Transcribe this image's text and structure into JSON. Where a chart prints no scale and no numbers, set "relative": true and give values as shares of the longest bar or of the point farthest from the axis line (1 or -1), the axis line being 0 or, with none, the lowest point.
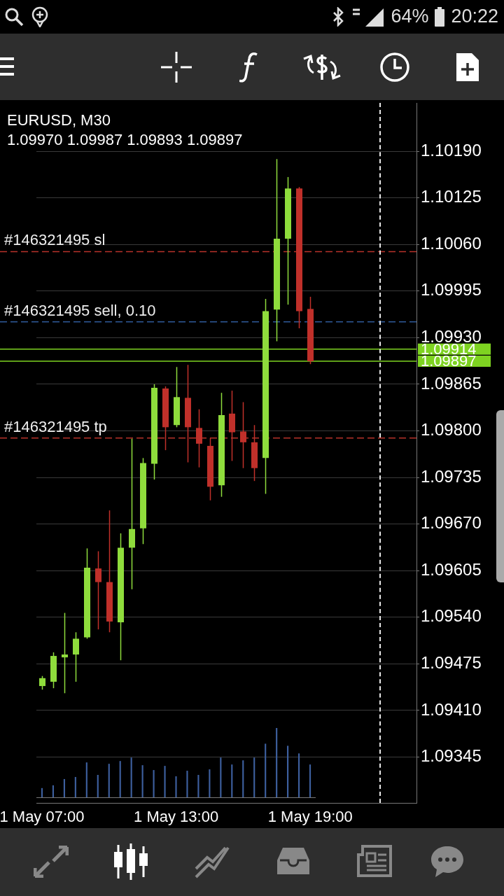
{
  "chart_data": [
    {
      "type": "candlestick",
      "title": "EURUSD, M30",
      "subtitle": "1.09970 1.09987 1.09893 1.09897",
      "categories": [
        "1 May 07:00",
        null,
        null,
        null,
        null,
        null,
        null,
        null,
        null,
        null,
        null,
        null,
        "1 May 13:00",
        null,
        null,
        null,
        null,
        null,
        null,
        null,
        null,
        null,
        null,
        null,
        "1 May 19:00",
        null,
        null,
        null,
        null,
        null,
        null,
        null,
        null,
        null
      ],
      "ohlc": [
        [
          1.09444,
          1.09458,
          1.09439,
          1.09455
        ],
        [
          1.0945,
          1.09491,
          1.09441,
          1.09486
        ],
        [
          1.09484,
          1.09546,
          1.09434,
          1.09488
        ],
        [
          1.09488,
          1.09519,
          1.0945,
          1.0951
        ],
        [
          1.09512,
          1.09636,
          1.0951,
          1.09609
        ],
        [
          1.09608,
          1.09632,
          1.09523,
          1.09589
        ],
        [
          1.09589,
          1.09689,
          1.09519,
          1.09534
        ],
        [
          1.09533,
          1.09657,
          1.0948,
          1.09637
        ],
        [
          1.09637,
          1.09789,
          1.09579,
          1.09663
        ],
        [
          1.09664,
          1.09762,
          1.09642,
          1.09755
        ],
        [
          1.09754,
          1.09865,
          1.09732,
          1.0986
        ],
        [
          1.09859,
          1.09862,
          1.09773,
          1.09805
        ],
        [
          1.09808,
          1.09889,
          1.09805,
          1.09847
        ],
        [
          1.09846,
          1.09892,
          1.09756,
          1.09805
        ],
        [
          1.09804,
          1.0983,
          1.09749,
          1.09782
        ],
        [
          1.09779,
          1.0979,
          1.09703,
          1.09722
        ],
        [
          1.09724,
          1.09853,
          1.09708,
          1.09822
        ],
        [
          1.09824,
          1.09856,
          1.09758,
          1.09798
        ],
        [
          1.09799,
          1.0984,
          1.09748,
          1.09784
        ],
        [
          1.09784,
          1.09808,
          1.0973,
          1.09748
        ],
        [
          1.09762,
          1.09984,
          1.09712,
          1.09967
        ],
        [
          1.09969,
          1.10179,
          1.09925,
          1.10068
        ],
        [
          1.10068,
          1.10154,
          1.09976,
          1.10138
        ],
        [
          1.10138,
          1.1014,
          1.09943,
          1.09967
        ],
        [
          1.0997,
          1.09987,
          1.09893,
          1.09897
        ],
        null,
        null,
        null,
        null,
        null,
        null,
        null,
        null,
        null
      ],
      "colors": [
        "#8fdc3c",
        "#8fdc3c",
        "#8fdc3c",
        "#8fdc3c",
        "#8fdc3c",
        "#c0302a",
        "#c0302a",
        "#8fdc3c",
        "#8fdc3c",
        "#8fdc3c",
        "#8fdc3c",
        "#c0302a",
        "#8fdc3c",
        "#c0302a",
        "#c0302a",
        "#c0302a",
        "#8fdc3c",
        "#c0302a",
        "#c0302a",
        "#c0302a",
        "#8fdc3c",
        "#8fdc3c",
        "#8fdc3c",
        "#c0302a",
        "#c0302a",
        null,
        null,
        null,
        null,
        null,
        null,
        null,
        null,
        null
      ],
      "ylim": [
        1.09281,
        1.10257
      ],
      "yticks": [
        {
          "value": 1.1019,
          "label": "1.10190"
        },
        {
          "value": 1.10125,
          "label": "1.10125"
        },
        {
          "value": 1.1006,
          "label": "1.10060"
        },
        {
          "value": 1.09995,
          "label": "1.09995"
        },
        {
          "value": 1.0993,
          "label": "1.09930"
        },
        {
          "value": 1.09865,
          "label": "1.09865"
        },
        {
          "value": 1.098,
          "label": "1.09800"
        },
        {
          "value": 1.09735,
          "label": "1.09735"
        },
        {
          "value": 1.0967,
          "label": "1.09670"
        },
        {
          "value": 1.09605,
          "label": "1.09605"
        },
        {
          "value": 1.0954,
          "label": "1.09540"
        },
        {
          "value": 1.09475,
          "label": "1.09475"
        },
        {
          "value": 1.0941,
          "label": "1.09410"
        },
        {
          "value": 1.09345,
          "label": "1.09345"
        }
      ],
      "grid": "y",
      "ref_lines": [
        {
          "axis": "y",
          "value": 1.1005,
          "label": "#146321495 sl",
          "color": "#b8322a",
          "line_style": "dashed"
        },
        {
          "axis": "y",
          "value": 1.09952,
          "label": "#146321495 sell, 0.10",
          "color": "#2f5a9a",
          "line_style": "dashed"
        },
        {
          "axis": "y",
          "value": 1.0979,
          "label": "#146321495 tp",
          "color": "#b8322a",
          "line_style": "dashed"
        },
        {
          "axis": "y",
          "value": 1.09914,
          "label": "1.09914",
          "color": "#7ed321",
          "line_style": "solid"
        },
        {
          "axis": "y",
          "value": 1.09897,
          "label": "1.09897",
          "color": "#7ed321",
          "line_style": "solid"
        }
      ],
      "annotations": [
        "64%",
        "20:22"
      ]
    },
    {
      "type": "bar",
      "relative": true,
      "color": "#3d5f9e",
      "categories": [
        null,
        null,
        null,
        null,
        null,
        null,
        null,
        null,
        null,
        null,
        null,
        null,
        null,
        null,
        null,
        null,
        null,
        null,
        null,
        null,
        null,
        null,
        null,
        null,
        null
      ],
      "values": [
        0.13,
        0.17,
        0.26,
        0.29,
        0.5,
        0.32,
        0.48,
        0.52,
        0.57,
        0.46,
        0.39,
        0.45,
        0.3,
        0.38,
        0.32,
        0.4,
        0.57,
        0.47,
        0.53,
        0.57,
        0.77,
        1,
        0.74,
        0.63,
        0.47
      ]
    }
  ]
}
